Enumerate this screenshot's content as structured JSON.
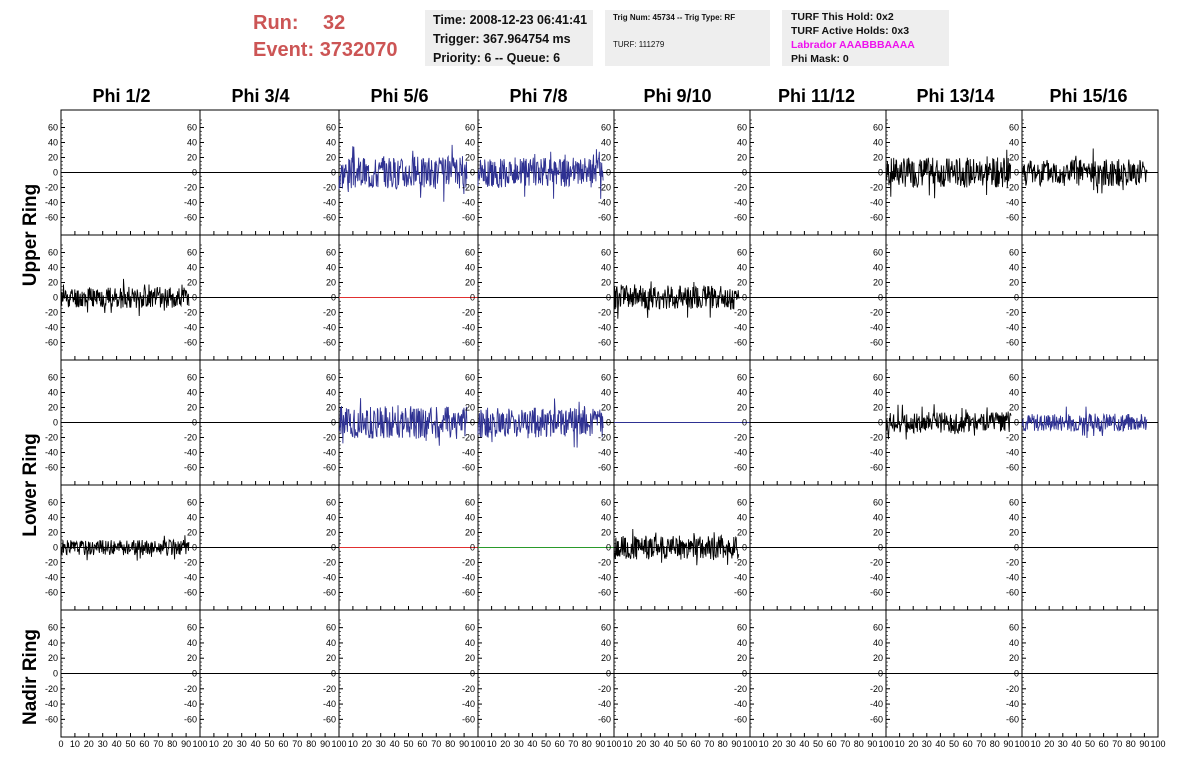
{
  "header": {
    "run_label": "Run:",
    "run_value": "32",
    "event_label": "Event:",
    "event_value": "3732070",
    "time": "Time: 2008-12-23 06:41:41",
    "trigger": "Trigger: 367.964754 ms",
    "priority": "Priority: 6 -- Queue: 6",
    "trig_num": "Trig Num: 45734 -- Trig Type: RF",
    "turf": "TURF: 111279",
    "turf_hold": "TURF This Hold: 0x2",
    "turf_active": "TURF Active Holds: 0x3",
    "labrador": "Labrador AAABBBAAAA",
    "phi_mask": "Phi Mask: 0"
  },
  "columns": [
    "Phi 1/2",
    "Phi 3/4",
    "Phi 5/6",
    "Phi 7/8",
    "Phi 9/10",
    "Phi 11/12",
    "Phi 13/14",
    "Phi 15/16"
  ],
  "rows": [
    "Upper Ring",
    "Lower Ring",
    "Nadir Ring"
  ],
  "colors": {
    "black": "#000000",
    "blue": "#2e3192",
    "red": "#e03030",
    "green": "#2a9a2a"
  },
  "chart_data": {
    "type": "line",
    "y_ticks": [
      "60",
      "40",
      "20",
      "0",
      "-20",
      "-40",
      "-60"
    ],
    "ylim": [
      -70,
      70
    ],
    "x_ticks": [
      "0",
      "10",
      "20",
      "30",
      "40",
      "50",
      "60",
      "70",
      "80",
      "90",
      "100"
    ],
    "xlim": [
      0,
      100
    ],
    "panels": [
      [
        {
          "kind": "flat",
          "color": "black"
        },
        {
          "kind": "flat",
          "color": "black"
        },
        {
          "kind": "noise",
          "color": "blue",
          "amp": 22,
          "end": 92,
          "seed": 3
        },
        {
          "kind": "noise",
          "color": "blue",
          "amp": 20,
          "end": 92,
          "seed": 4
        },
        {
          "kind": "flat",
          "color": "black"
        },
        {
          "kind": "flat",
          "color": "black"
        },
        {
          "kind": "noise",
          "color": "black",
          "amp": 20,
          "end": 92,
          "seed": 7
        },
        {
          "kind": "noise",
          "color": "black",
          "amp": 18,
          "end": 92,
          "seed": 8
        }
      ],
      [
        {
          "kind": "noise",
          "color": "black",
          "amp": 14,
          "end": 92,
          "seed": 11
        },
        {
          "kind": "flat",
          "color": "black"
        },
        {
          "kind": "flat",
          "color": "red"
        },
        {
          "kind": "flat",
          "color": "black"
        },
        {
          "kind": "noise",
          "color": "black",
          "amp": 16,
          "end": 92,
          "seed": 15
        },
        {
          "kind": "flat",
          "color": "black"
        },
        {
          "kind": "flat",
          "color": "black"
        },
        {
          "kind": "flat",
          "color": "black"
        }
      ],
      [
        {
          "kind": "flat",
          "color": "black"
        },
        {
          "kind": "flat",
          "color": "black"
        },
        {
          "kind": "noise",
          "color": "blue",
          "amp": 22,
          "end": 92,
          "seed": 21
        },
        {
          "kind": "noise",
          "color": "blue",
          "amp": 20,
          "end": 92,
          "seed": 22
        },
        {
          "kind": "flat",
          "color": "blue"
        },
        {
          "kind": "flat",
          "color": "black"
        },
        {
          "kind": "noise",
          "color": "black",
          "amp": 14,
          "end": 92,
          "seed": 25
        },
        {
          "kind": "noise",
          "color": "blue",
          "amp": 12,
          "end": 92,
          "seed": 26
        }
      ],
      [
        {
          "kind": "noise",
          "color": "black",
          "amp": 10,
          "end": 92,
          "seed": 31
        },
        {
          "kind": "flat",
          "color": "black"
        },
        {
          "kind": "flat",
          "color": "red"
        },
        {
          "kind": "flat",
          "color": "green"
        },
        {
          "kind": "noise",
          "color": "black",
          "amp": 16,
          "end": 92,
          "seed": 35
        },
        {
          "kind": "flat",
          "color": "black"
        },
        {
          "kind": "flat",
          "color": "black"
        },
        {
          "kind": "flat",
          "color": "black"
        }
      ],
      [
        {
          "kind": "flat",
          "color": "black"
        },
        {
          "kind": "flat",
          "color": "black"
        },
        {
          "kind": "flat",
          "color": "black"
        },
        {
          "kind": "flat",
          "color": "black"
        },
        {
          "kind": "flat",
          "color": "black"
        },
        {
          "kind": "flat",
          "color": "black"
        },
        {
          "kind": "flat",
          "color": "black"
        },
        {
          "kind": "flat",
          "color": "black"
        }
      ]
    ]
  }
}
